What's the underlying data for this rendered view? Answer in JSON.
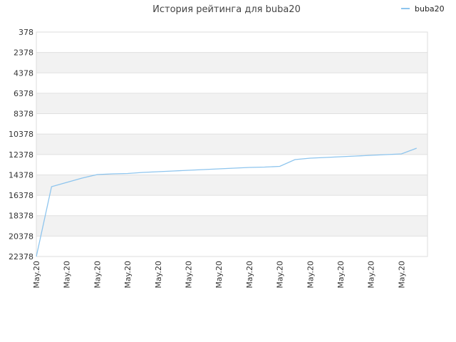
{
  "chart_data": {
    "type": "line",
    "title": "История рейтинга для buba20",
    "categories": [
      "May.20",
      null,
      "May.20",
      null,
      "May.20",
      null,
      "May.20",
      null,
      "May.20",
      null,
      "May.20",
      null,
      "May.20",
      null,
      "May.20",
      null,
      "May.20",
      null,
      "May.20",
      null,
      "May.20",
      null,
      "May.20",
      null,
      "May.20",
      null
    ],
    "series": [
      {
        "name": "buba20",
        "color": "#8ec5ee",
        "values": [
          22378,
          15534,
          15115,
          14697,
          14346,
          14276,
          14241,
          14137,
          14067,
          13997,
          13927,
          13857,
          13787,
          13718,
          13648,
          13613,
          13543,
          12880,
          12740,
          12670,
          12600,
          12530,
          12460,
          12391,
          12321,
          11762
        ]
      }
    ],
    "ylim": [
      22378,
      378
    ],
    "yticks": [
      378,
      2378,
      4378,
      6378,
      8378,
      10378,
      12378,
      14378,
      16378,
      18378,
      20378,
      22378
    ],
    "grid": true,
    "legend": "top-right"
  }
}
